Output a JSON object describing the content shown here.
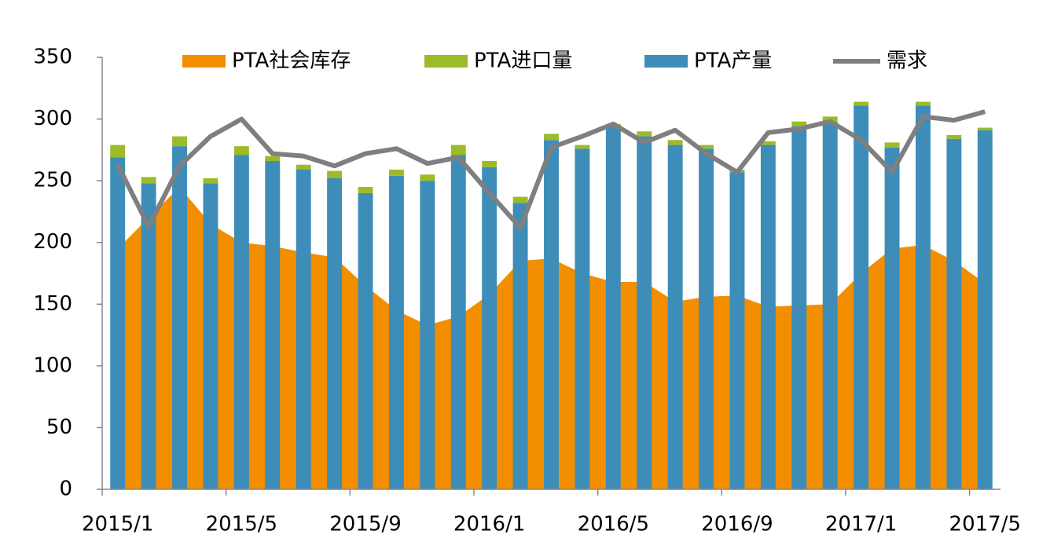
{
  "chart_data": {
    "type": "bar",
    "categories": [
      "2015/1",
      null,
      null,
      null,
      "2015/5",
      null,
      null,
      null,
      "2015/9",
      null,
      null,
      null,
      "2016/1",
      null,
      null,
      null,
      "2016/5",
      null,
      null,
      null,
      "2016/9",
      null,
      null,
      null,
      "2017/1",
      null,
      null,
      null,
      "2017/5"
    ],
    "series": [
      {
        "name": "PTA社会库存",
        "type": "area",
        "color": "#f28e00",
        "values": [
          195,
          220,
          245,
          215,
          200,
          197,
          192,
          188,
          165,
          145,
          133,
          140,
          158,
          185,
          187,
          175,
          168,
          168,
          152,
          156,
          157,
          148,
          149,
          150,
          175,
          195,
          198,
          185,
          167
        ]
      },
      {
        "name": "PTA进口量",
        "type": "bar",
        "color": "#9bbb27",
        "values": [
          10,
          5,
          8,
          4,
          7,
          4,
          4,
          6,
          5,
          5,
          5,
          8,
          5,
          5,
          5,
          3,
          2,
          4,
          4,
          3,
          2,
          3,
          4,
          4,
          3,
          4,
          3,
          3,
          2
        ]
      },
      {
        "name": "PTA产量",
        "type": "bar",
        "color": "#3d8db8",
        "values": [
          269,
          248,
          278,
          248,
          271,
          266,
          259,
          252,
          240,
          254,
          250,
          271,
          261,
          232,
          283,
          276,
          294,
          286,
          279,
          276,
          257,
          279,
          294,
          298,
          311,
          277,
          311,
          284,
          291
        ]
      },
      {
        "name": "需求",
        "type": "line",
        "color": "#7f7f7f",
        "values": [
          263,
          213,
          262,
          286,
          300,
          272,
          270,
          262,
          272,
          276,
          264,
          269,
          240,
          212,
          277,
          286,
          296,
          281,
          291,
          272,
          257,
          289,
          292,
          298,
          283,
          257,
          302,
          299,
          306
        ]
      }
    ],
    "ylim": [
      0,
      350
    ],
    "yticks": [
      0,
      50,
      100,
      150,
      200,
      250,
      300,
      350
    ],
    "legend": "top"
  }
}
